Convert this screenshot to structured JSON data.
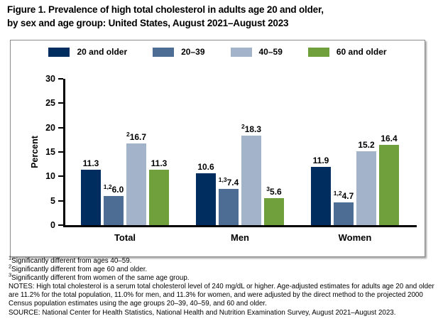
{
  "figure": {
    "title_lines": [
      "Figure 1. Prevalence of high total cholesterol in adults age 20 and older,",
      "by sex and age group: United States, August 2021–August 2023"
    ]
  },
  "chart_data": {
    "type": "bar",
    "title": "Prevalence of high total cholesterol in adults age 20 and older, by sex and age group: United States, August 2021–August 2023",
    "xlabel": "",
    "ylabel": "Percent",
    "ylim": [
      0,
      30
    ],
    "yticks": [
      0,
      5,
      10,
      15,
      20,
      25,
      30
    ],
    "grid": false,
    "legend_position": "top-center",
    "categories": [
      "Total",
      "Men",
      "Women"
    ],
    "series": [
      {
        "name": "20 and older",
        "color": "#002d5f",
        "values": [
          11.3,
          10.6,
          11.9
        ],
        "label_superscripts": [
          "",
          "",
          ""
        ]
      },
      {
        "name": "20–39",
        "color": "#4d6d94",
        "values": [
          6.0,
          7.4,
          4.7
        ],
        "label_superscripts": [
          "1,2",
          "1,3",
          "1,2"
        ]
      },
      {
        "name": "40–59",
        "color": "#a3b3c9",
        "values": [
          16.7,
          18.3,
          15.2
        ],
        "label_superscripts": [
          "2",
          "2",
          ""
        ]
      },
      {
        "name": "60 and older",
        "color": "#6fa03c",
        "values": [
          11.3,
          5.6,
          16.4
        ],
        "label_superscripts": [
          "",
          "3",
          ""
        ]
      }
    ]
  },
  "footnotes": [
    {
      "sup": "1",
      "text": "Significantly different from ages 40–59."
    },
    {
      "sup": "2",
      "text": "Significantly different from age 60 and older."
    },
    {
      "sup": "3",
      "text": "Significantly different from women of the same age group."
    },
    {
      "sup": "",
      "text": "NOTES: High total cholesterol is a serum total cholesterol level of 240 mg/dL or higher. Age-adjusted estimates for adults age 20 and older are 11.2% for the total population, 11.0% for men, and 11.3% for women, and were adjusted by the direct method to the projected 2000 Census population estimates using the age groups 20–39, 40–59, and 60 and older."
    },
    {
      "sup": "",
      "text": "SOURCE: National Center for Health Statistics, National Health and Nutrition Examination Survey, August 2021–August 2023."
    }
  ]
}
